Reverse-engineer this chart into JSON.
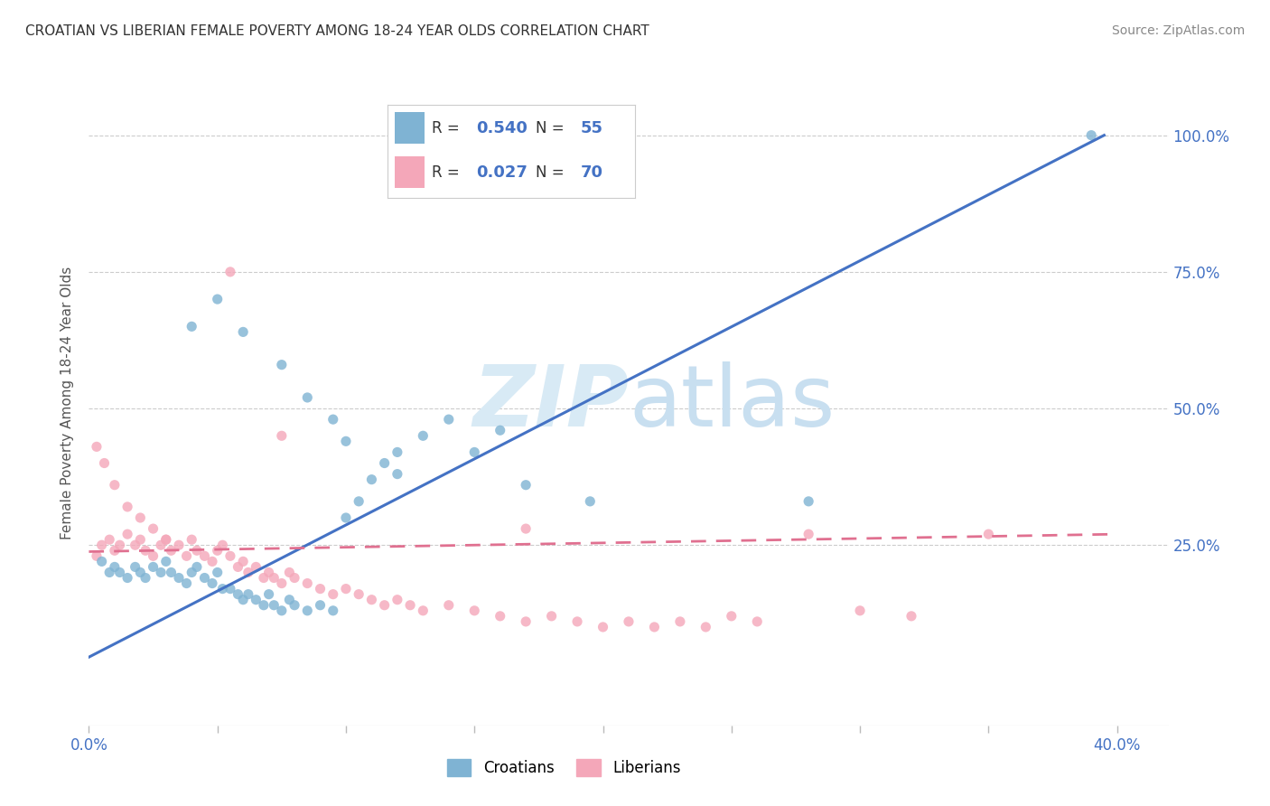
{
  "title": "CROATIAN VS LIBERIAN FEMALE POVERTY AMONG 18-24 YEAR OLDS CORRELATION CHART",
  "source": "Source: ZipAtlas.com",
  "ylabel": "Female Poverty Among 18-24 Year Olds",
  "ytick_labels": [
    "100.0%",
    "75.0%",
    "50.0%",
    "25.0%"
  ],
  "ytick_values": [
    1.0,
    0.75,
    0.5,
    0.25
  ],
  "xlim": [
    0.0,
    0.42
  ],
  "ylim": [
    -0.08,
    1.1
  ],
  "watermark_zip": "ZIP",
  "watermark_atlas": "atlas",
  "croatian_color": "#7FB3D3",
  "liberian_color": "#F4A7B9",
  "croatian_line_color": "#4472C4",
  "liberian_line_color": "#E07090",
  "background_color": "#FFFFFF",
  "legend_R_color": "#4472C4",
  "legend_text_color": "#333333",
  "croatian_scatter_x": [
    0.005,
    0.008,
    0.01,
    0.012,
    0.015,
    0.018,
    0.02,
    0.022,
    0.025,
    0.028,
    0.03,
    0.032,
    0.035,
    0.038,
    0.04,
    0.042,
    0.045,
    0.048,
    0.05,
    0.052,
    0.055,
    0.058,
    0.06,
    0.062,
    0.065,
    0.068,
    0.07,
    0.072,
    0.075,
    0.078,
    0.08,
    0.085,
    0.09,
    0.095,
    0.1,
    0.105,
    0.11,
    0.115,
    0.12,
    0.13,
    0.14,
    0.15,
    0.16,
    0.17,
    0.195,
    0.28,
    0.39,
    0.04,
    0.05,
    0.06,
    0.075,
    0.085,
    0.095,
    0.1,
    0.12
  ],
  "croatian_scatter_y": [
    0.22,
    0.2,
    0.21,
    0.2,
    0.19,
    0.21,
    0.2,
    0.19,
    0.21,
    0.2,
    0.22,
    0.2,
    0.19,
    0.18,
    0.2,
    0.21,
    0.19,
    0.18,
    0.2,
    0.17,
    0.17,
    0.16,
    0.15,
    0.16,
    0.15,
    0.14,
    0.16,
    0.14,
    0.13,
    0.15,
    0.14,
    0.13,
    0.14,
    0.13,
    0.3,
    0.33,
    0.37,
    0.4,
    0.42,
    0.45,
    0.48,
    0.42,
    0.46,
    0.36,
    0.33,
    0.33,
    1.0,
    0.65,
    0.7,
    0.64,
    0.58,
    0.52,
    0.48,
    0.44,
    0.38
  ],
  "liberian_scatter_x": [
    0.003,
    0.005,
    0.008,
    0.01,
    0.012,
    0.015,
    0.018,
    0.02,
    0.022,
    0.025,
    0.028,
    0.03,
    0.032,
    0.035,
    0.038,
    0.04,
    0.042,
    0.045,
    0.048,
    0.05,
    0.052,
    0.055,
    0.058,
    0.06,
    0.062,
    0.065,
    0.068,
    0.07,
    0.072,
    0.075,
    0.078,
    0.08,
    0.085,
    0.09,
    0.095,
    0.1,
    0.105,
    0.11,
    0.115,
    0.12,
    0.125,
    0.13,
    0.14,
    0.15,
    0.16,
    0.17,
    0.18,
    0.19,
    0.2,
    0.21,
    0.22,
    0.23,
    0.24,
    0.25,
    0.26,
    0.28,
    0.3,
    0.32,
    0.35,
    0.003,
    0.006,
    0.01,
    0.015,
    0.02,
    0.025,
    0.03,
    0.055,
    0.075,
    0.17
  ],
  "liberian_scatter_y": [
    0.23,
    0.25,
    0.26,
    0.24,
    0.25,
    0.27,
    0.25,
    0.26,
    0.24,
    0.23,
    0.25,
    0.26,
    0.24,
    0.25,
    0.23,
    0.26,
    0.24,
    0.23,
    0.22,
    0.24,
    0.25,
    0.23,
    0.21,
    0.22,
    0.2,
    0.21,
    0.19,
    0.2,
    0.19,
    0.18,
    0.2,
    0.19,
    0.18,
    0.17,
    0.16,
    0.17,
    0.16,
    0.15,
    0.14,
    0.15,
    0.14,
    0.13,
    0.14,
    0.13,
    0.12,
    0.11,
    0.12,
    0.11,
    0.1,
    0.11,
    0.1,
    0.11,
    0.1,
    0.12,
    0.11,
    0.27,
    0.13,
    0.12,
    0.27,
    0.43,
    0.4,
    0.36,
    0.32,
    0.3,
    0.28,
    0.26,
    0.75,
    0.45,
    0.28
  ],
  "croatian_trend_x": [
    0.0,
    0.395
  ],
  "croatian_trend_y": [
    0.045,
    1.0
  ],
  "liberian_trend_x": [
    0.0,
    0.4
  ],
  "liberian_trend_y": [
    0.238,
    0.27
  ]
}
